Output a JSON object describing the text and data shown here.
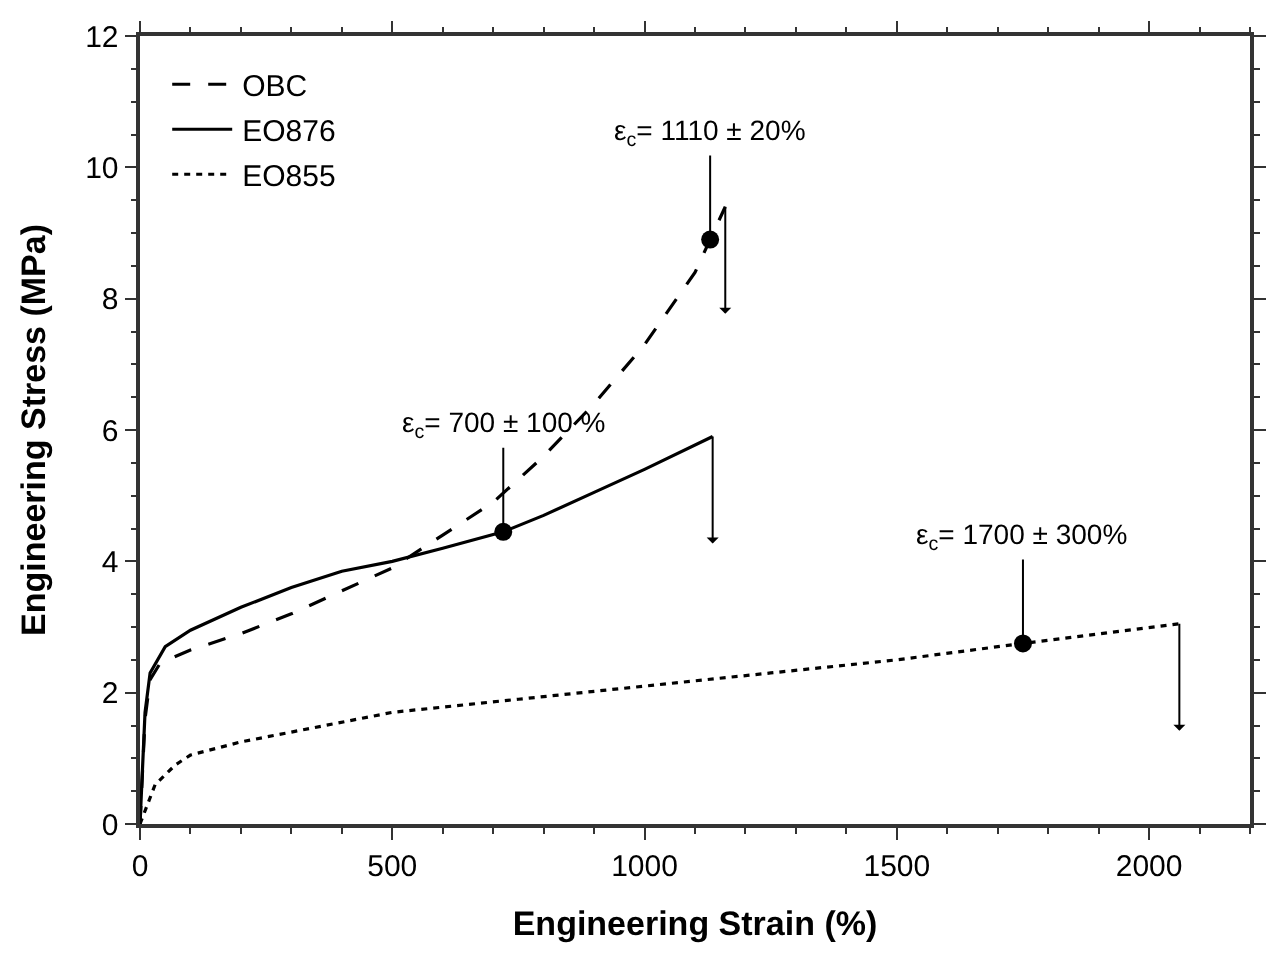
{
  "chart_data": {
    "type": "line",
    "xlabel": "Engineering Strain (%)",
    "ylabel": "Engineering Stress (MPa)",
    "xlim": [
      0,
      2200
    ],
    "xticks": [
      0,
      500,
      1000,
      1500,
      2000
    ],
    "ylim": [
      0,
      12
    ],
    "yticks": [
      0,
      2,
      4,
      6,
      8,
      10,
      12
    ],
    "legend": "top left",
    "marker": "none",
    "series": [
      {
        "name": "OBC",
        "color": "#000000",
        "line_style": "dashed",
        "x": [
          0,
          10,
          20,
          40,
          100,
          200,
          300,
          400,
          500,
          600,
          700,
          800,
          900,
          1000,
          1100,
          1130,
          1160
        ],
        "values": [
          0,
          1.6,
          2.2,
          2.45,
          2.65,
          2.9,
          3.2,
          3.55,
          3.9,
          4.4,
          4.9,
          5.6,
          6.4,
          7.3,
          8.4,
          8.9,
          9.4
        ]
      },
      {
        "name": "EO876",
        "color": "#000000",
        "line_style": "solid",
        "x": [
          0,
          10,
          20,
          50,
          100,
          200,
          300,
          400,
          500,
          600,
          720,
          800,
          900,
          1000,
          1135
        ],
        "values": [
          0,
          1.7,
          2.3,
          2.7,
          2.95,
          3.3,
          3.6,
          3.85,
          4.0,
          4.2,
          4.45,
          4.7,
          5.05,
          5.4,
          5.9
        ]
      },
      {
        "name": "EO855",
        "color": "#000000",
        "line_style": "dotted",
        "x": [
          0,
          30,
          70,
          100,
          200,
          300,
          500,
          750,
          1000,
          1250,
          1500,
          1750,
          2060
        ],
        "values": [
          0,
          0.6,
          0.9,
          1.05,
          1.25,
          1.4,
          1.7,
          1.9,
          2.1,
          2.3,
          2.5,
          2.75,
          3.05
        ]
      },
      {
        "type": "scatter",
        "color": "#000000",
        "marker": "circle",
        "x": [
          1130,
          720,
          1750
        ],
        "values": [
          8.9,
          4.45,
          2.75
        ]
      }
    ],
    "annotations": [
      {
        "text": "ε$_{c}$= 1110 ± 20%",
        "x": 1130,
        "y": 8.9
      },
      {
        "text": "ε$_{c}$= 700 ± 100 %",
        "x": 720,
        "y": 4.45
      },
      {
        "text": "ε$_{c}$= 1700 ± 300%",
        "x": 1750,
        "y": 2.75
      }
    ]
  }
}
